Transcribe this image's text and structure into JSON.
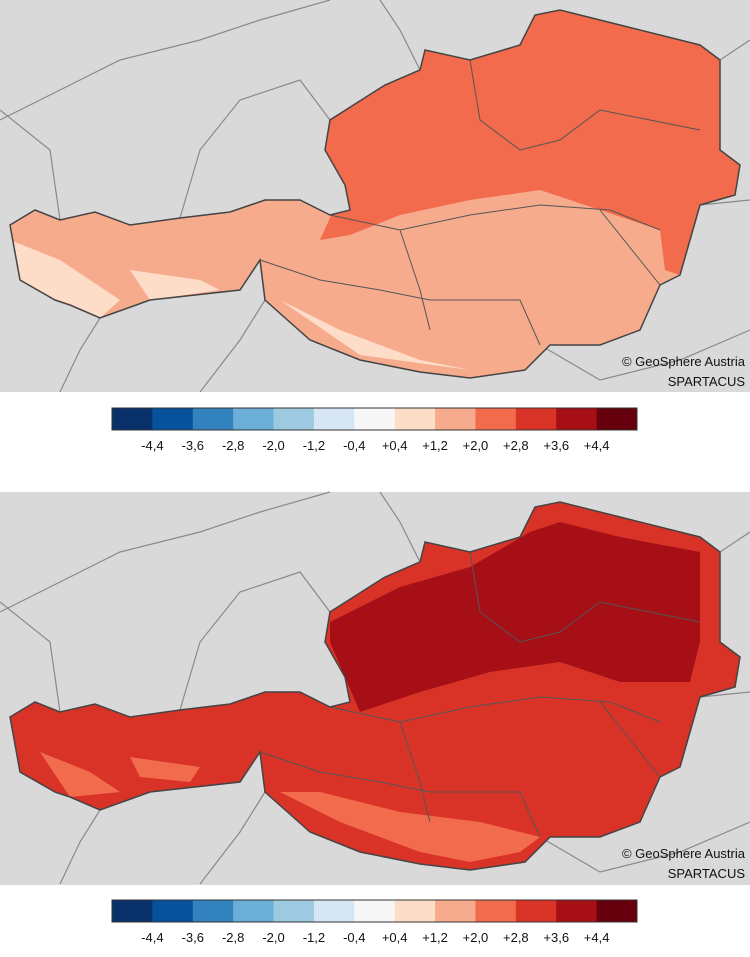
{
  "colorbar_colors": [
    "#08306b",
    "#08519c",
    "#3182bd",
    "#6baed6",
    "#9ecae1",
    "#d6e6f4",
    "#f7f7f7",
    "#fddcc8",
    "#f6ab8c",
    "#f26b4c",
    "#d93328",
    "#a50f15",
    "#67000d"
  ],
  "panels": [
    {
      "credit": "© GeoSphere Austria",
      "source": "SPARTACUS",
      "colorbar_labels": [
        "-4,4",
        "-3,6",
        "-2,8",
        "-2,0",
        "-1,2",
        "-0,4",
        "+0,4",
        "+1,2",
        "+2,0",
        "+2,8",
        "+3,6",
        "+4,4"
      ]
    },
    {
      "credit": "© GeoSphere Austria",
      "source": "SPARTACUS",
      "colorbar_labels": [
        "-4,4",
        "-3,6",
        "-2,8",
        "-2,0",
        "-1,2",
        "-0,4",
        "+0,4",
        "+1,2",
        "+2,0",
        "+2,8",
        "+3,6",
        "+4,4"
      ]
    }
  ]
}
